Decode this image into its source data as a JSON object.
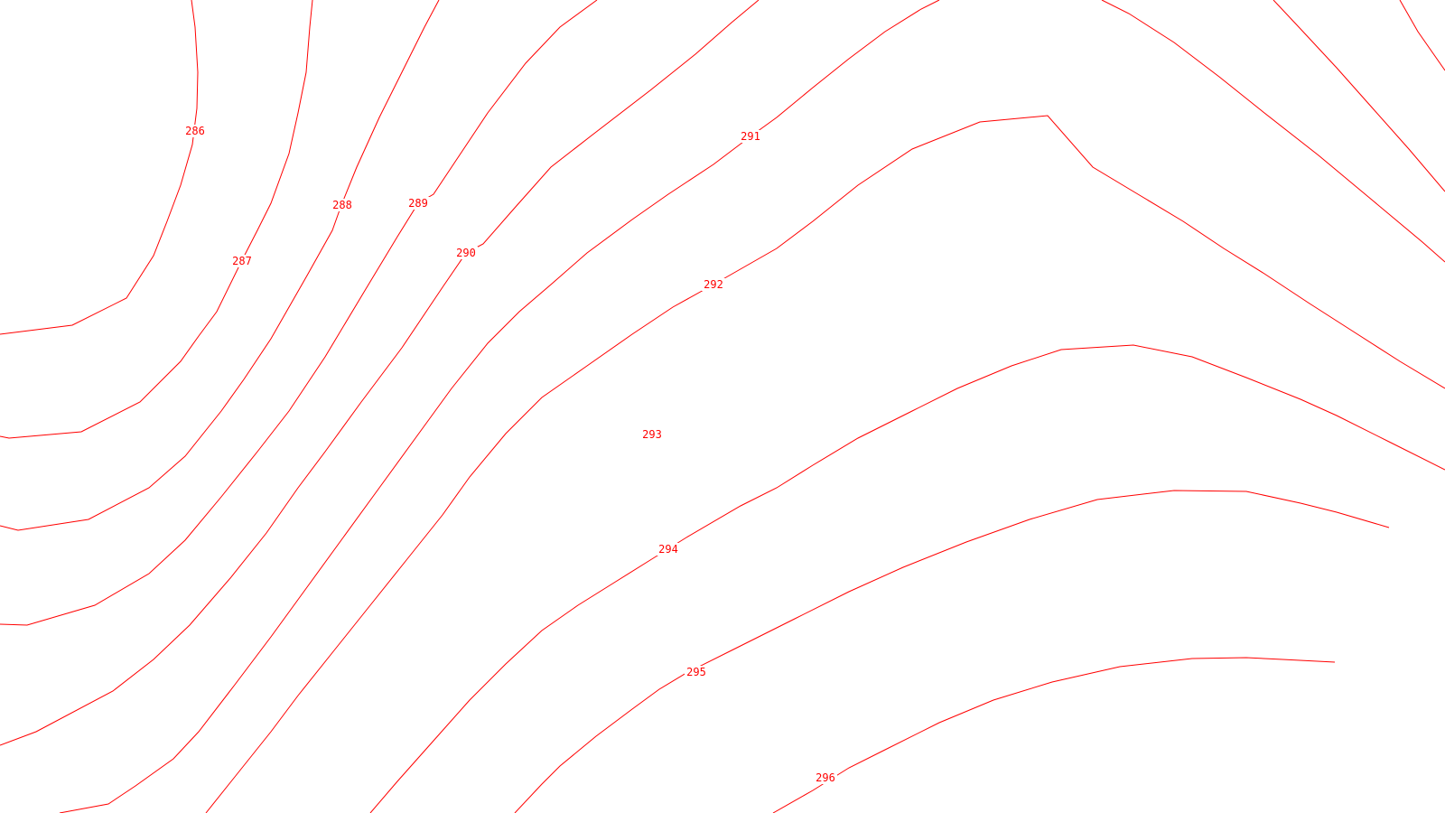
{
  "map": {
    "line_color": "#ff0000",
    "label_color": "#ff0000",
    "background": "#ffffff",
    "contours": [
      {
        "value": 286,
        "label": "286"
      },
      {
        "value": 287,
        "label": "287"
      },
      {
        "value": 288,
        "label": "288"
      },
      {
        "value": 289,
        "label": "289"
      },
      {
        "value": 290,
        "label": "290"
      },
      {
        "value": 291,
        "label": "291"
      },
      {
        "value": 292,
        "label": "292"
      },
      {
        "value": 293,
        "label": "293"
      },
      {
        "value": 294,
        "label": "294"
      },
      {
        "value": 295,
        "label": "295"
      },
      {
        "value": 296,
        "label": "296"
      }
    ]
  }
}
